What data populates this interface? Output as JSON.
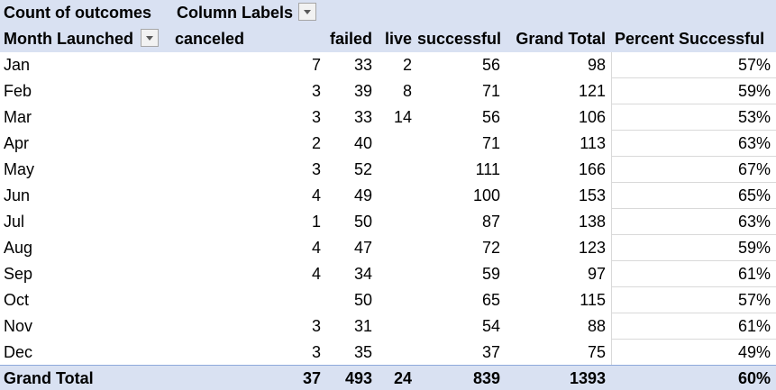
{
  "pivot": {
    "top_label": "Count of outcomes",
    "column_labels": "Column Labels",
    "row_header": "Month Launched",
    "columns": [
      "canceled",
      "failed",
      "live",
      "successful",
      "Grand Total",
      "Percent Successful"
    ],
    "rows": [
      {
        "month": "Jan",
        "canceled": "7",
        "failed": "33",
        "live": "2",
        "successful": "56",
        "total": "98",
        "pct": "57%"
      },
      {
        "month": "Feb",
        "canceled": "3",
        "failed": "39",
        "live": "8",
        "successful": "71",
        "total": "121",
        "pct": "59%"
      },
      {
        "month": "Mar",
        "canceled": "3",
        "failed": "33",
        "live": "14",
        "successful": "56",
        "total": "106",
        "pct": "53%"
      },
      {
        "month": "Apr",
        "canceled": "2",
        "failed": "40",
        "live": "",
        "successful": "71",
        "total": "113",
        "pct": "63%"
      },
      {
        "month": "May",
        "canceled": "3",
        "failed": "52",
        "live": "",
        "successful": "111",
        "total": "166",
        "pct": "67%"
      },
      {
        "month": "Jun",
        "canceled": "4",
        "failed": "49",
        "live": "",
        "successful": "100",
        "total": "153",
        "pct": "65%"
      },
      {
        "month": "Jul",
        "canceled": "1",
        "failed": "50",
        "live": "",
        "successful": "87",
        "total": "138",
        "pct": "63%"
      },
      {
        "month": "Aug",
        "canceled": "4",
        "failed": "47",
        "live": "",
        "successful": "72",
        "total": "123",
        "pct": "59%"
      },
      {
        "month": "Sep",
        "canceled": "4",
        "failed": "34",
        "live": "",
        "successful": "59",
        "total": "97",
        "pct": "61%"
      },
      {
        "month": "Oct",
        "canceled": "",
        "failed": "50",
        "live": "",
        "successful": "65",
        "total": "115",
        "pct": "57%"
      },
      {
        "month": "Nov",
        "canceled": "3",
        "failed": "31",
        "live": "",
        "successful": "54",
        "total": "88",
        "pct": "61%"
      },
      {
        "month": "Dec",
        "canceled": "3",
        "failed": "35",
        "live": "",
        "successful": "37",
        "total": "75",
        "pct": "49%"
      }
    ],
    "grand_total": {
      "label": "Grand Total",
      "canceled": "37",
      "failed": "493",
      "live": "24",
      "successful": "839",
      "total": "1393",
      "pct": "60%"
    }
  },
  "colors": {
    "header_fill": "#d9e1f2",
    "total_border": "#8ea9db"
  }
}
